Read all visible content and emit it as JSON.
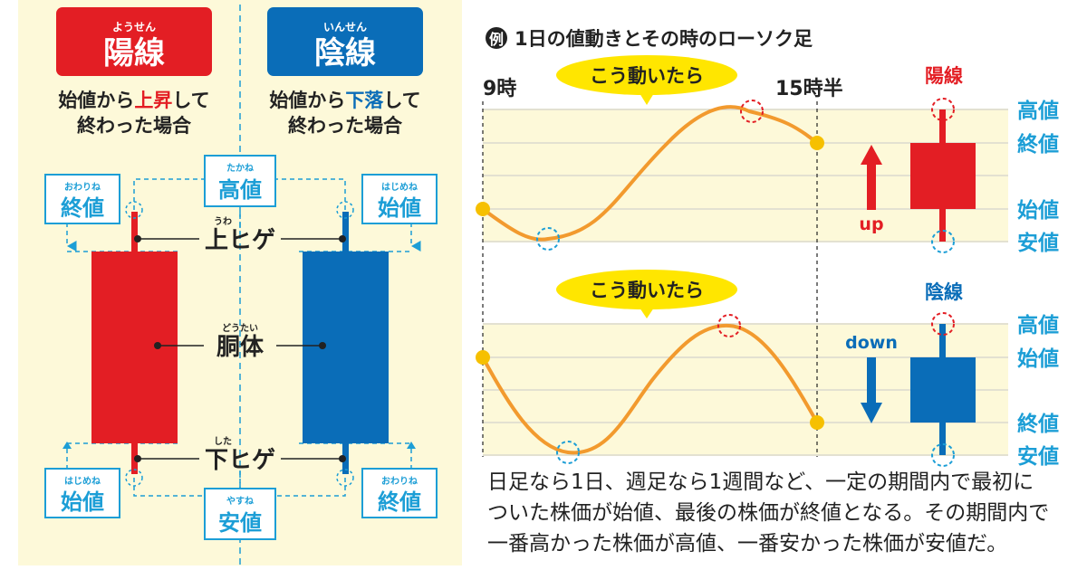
{
  "colors": {
    "yang": "#e31e24",
    "yin": "#0a6db8",
    "teal": "#1c9ed6",
    "orange": "#f29a2e",
    "wick_line": "#222222",
    "highlight": "#ffe600"
  },
  "left": {
    "yang": {
      "title": "陽線",
      "ruby": "ようせん",
      "desc1_a": "始値から",
      "desc1_b": "上昇",
      "desc1_c": "して",
      "desc2": "終わった場合"
    },
    "yin": {
      "title": "陰線",
      "ruby": "いんせん",
      "desc1_a": "始値から",
      "desc1_b": "下落",
      "desc1_c": "して",
      "desc2": "終わった場合"
    },
    "boxes": {
      "yang_top": {
        "ruby": "おわりね",
        "label": "終値"
      },
      "center_top": {
        "ruby": "たかね",
        "label": "高値"
      },
      "yin_top": {
        "ruby": "はじめね",
        "label": "始値"
      },
      "yang_bottom": {
        "ruby": "はじめね",
        "label": "始値"
      },
      "center_bottom": {
        "ruby": "やすね",
        "label": "安値"
      },
      "yin_bottom": {
        "ruby": "おわりね",
        "label": "終値"
      }
    },
    "labels": {
      "upper_wick": {
        "ruby": "うわ",
        "text": "上ヒゲ"
      },
      "body": {
        "ruby": "どうたい",
        "text": "胴体"
      },
      "lower_wick": {
        "ruby": "した",
        "text": "下ヒゲ"
      }
    }
  },
  "right": {
    "example_badge": "例",
    "title": "1日の値動きとその時のローソク足",
    "start_time": "9時",
    "end_time": "15時半",
    "bubble_text": "こう動いたら",
    "top": {
      "candle_title": "陽線",
      "arrow_label": "up",
      "levels": [
        "高値",
        "終値",
        "始値",
        "安値"
      ]
    },
    "bottom": {
      "candle_title": "陰線",
      "arrow_label": "down",
      "levels": [
        "高値",
        "始値",
        "終値",
        "安値"
      ]
    }
  },
  "caption": {
    "line1": "日足なら1日、週足なら1週間など、一定の期間内で最初に",
    "line2": "ついた株価が始値、最後の株価が終値となる。その期間内で",
    "line3": "一番高かった株価が高値、一番安かった株価が安値だ。"
  }
}
